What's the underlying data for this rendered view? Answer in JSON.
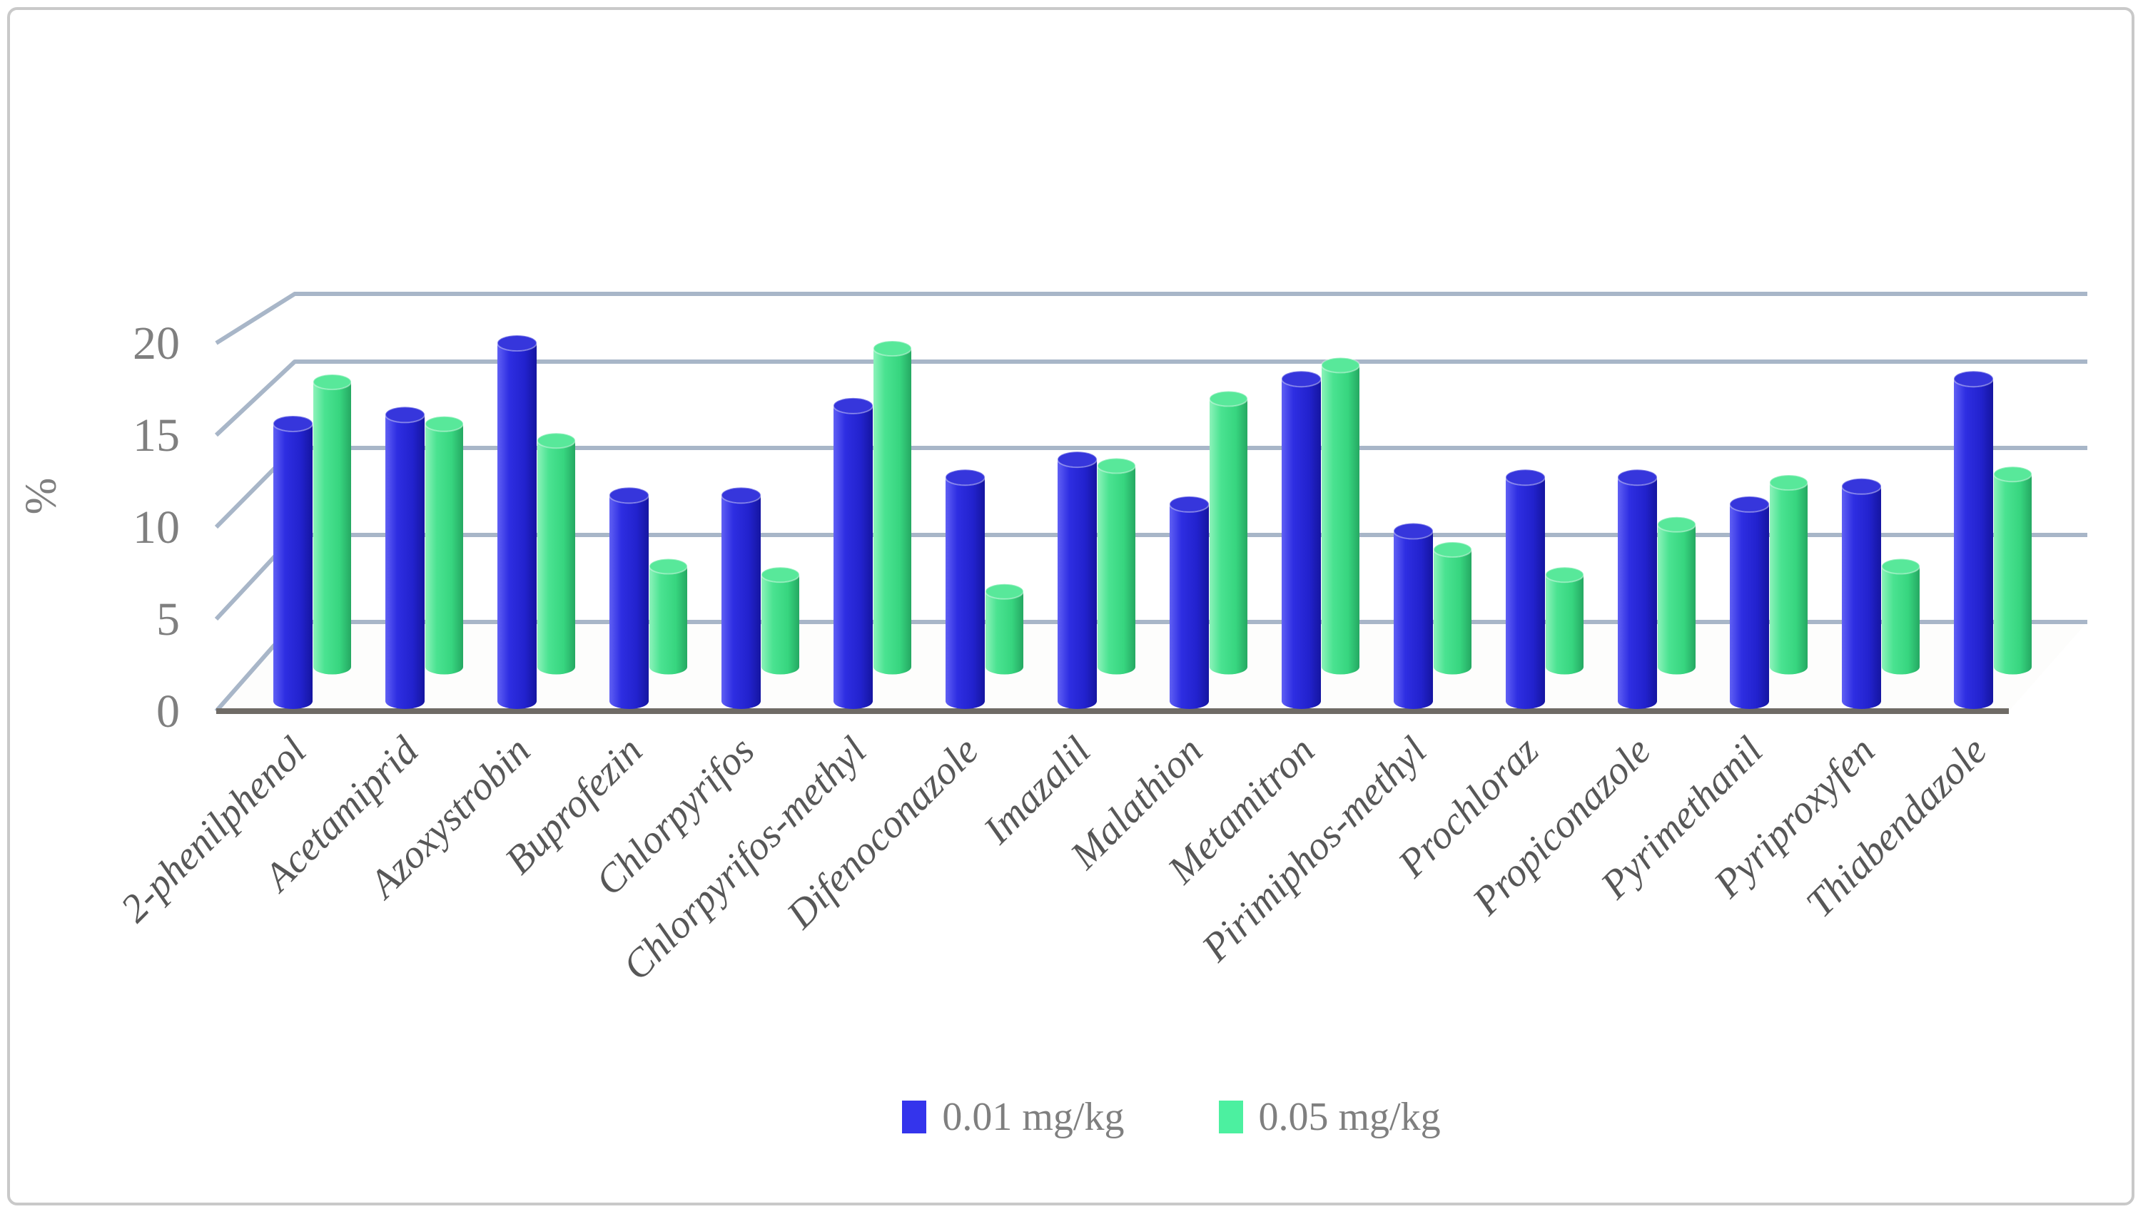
{
  "figure": {
    "type": "3d-cylinder-column-chart"
  },
  "axes": {
    "y_unit_label": "%",
    "y_ticks": [
      "0",
      "5",
      "10",
      "15",
      "20"
    ]
  },
  "legend": {
    "items": [
      {
        "label": "0.01 mg/kg",
        "color": "#3434ec"
      },
      {
        "label": "0.05 mg/kg",
        "color": "#4cf0a0"
      }
    ]
  },
  "chart_data": {
    "type": "bar",
    "substyle": "3d-cylinder",
    "title": "",
    "xlabel": "",
    "ylabel": "%",
    "ylim": [
      0,
      20
    ],
    "yticks": [
      0,
      5,
      10,
      15,
      20
    ],
    "grid": true,
    "legend_position": "bottom",
    "categories": [
      "2-phenilphenol",
      "Acetamiprid",
      "Azoxystrobin",
      "Buprofezin",
      "Chlorpyrifos",
      "Chlorpyrifos-methyl",
      "Difenoconazole",
      "Imazalil",
      "Malathion",
      "Metamitron",
      "Pirimiphos-methyl",
      "Prochloraz",
      "Propiconazole",
      "Pyrimethanil",
      "Pyriproxyfen",
      "Thiabendazole"
    ],
    "series": [
      {
        "name": "0.01 mg/kg",
        "color": "#2b2bdd",
        "values": [
          15.5,
          16,
          20,
          11.5,
          11.5,
          16.5,
          12.5,
          13.5,
          11,
          18,
          9.5,
          12.5,
          12.5,
          11,
          12,
          18
        ]
      },
      {
        "name": "0.05 mg/kg",
        "color": "#44dd88",
        "values": [
          17,
          14.5,
          13.5,
          6,
          5.5,
          19,
          4.5,
          12,
          16,
          18,
          7,
          5.5,
          8.5,
          11,
          6,
          11.5
        ]
      }
    ],
    "colors": {
      "gridline": "#a8b6c8",
      "floor_edge": "#6f6b66",
      "tick_text": "#7f7f7f",
      "category_text": "#575757",
      "legend_text": "#7f7f7f"
    }
  }
}
